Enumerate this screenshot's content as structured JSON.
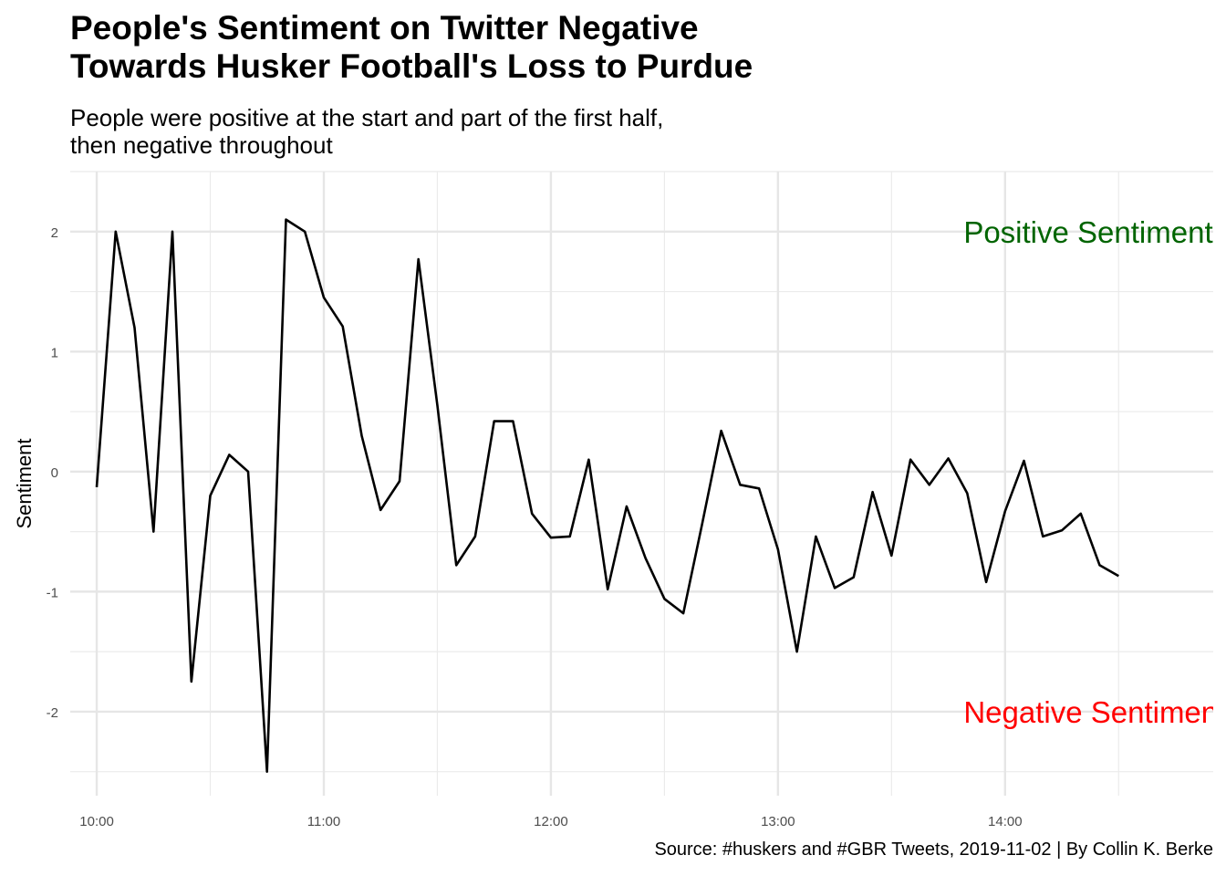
{
  "chart_data": {
    "type": "line",
    "title": [
      "People's Sentiment on Twitter Negative",
      "Towards Husker Football's Loss to Purdue"
    ],
    "subtitle": [
      "People were positive at the start and part of the first half,",
      "then negative throughout"
    ],
    "ylabel": "Sentiment",
    "xlabel": "",
    "caption": "Source: #huskers and #GBR Tweets, 2019-11-02 | By Collin K. Berke",
    "x_ticks": [
      "10:00",
      "11:00",
      "12:00",
      "13:00",
      "14:00"
    ],
    "y_ticks": [
      2,
      1,
      0,
      -1,
      -2
    ],
    "xlim": [
      "09:53",
      "14:55"
    ],
    "ylim": [
      -2.7,
      2.5
    ],
    "grid": true,
    "annotations": [
      {
        "text": "Positive Sentiment",
        "x": "13:50",
        "y": 2.0,
        "color": "#006400"
      },
      {
        "text": "Negative Sentiment",
        "x": "13:50",
        "y": -2.0,
        "color": "#ff0000"
      }
    ],
    "series": [
      {
        "color": "#000000",
        "x": [
          "10:00",
          "10:05",
          "10:10",
          "10:15",
          "10:20",
          "10:25",
          "10:30",
          "10:35",
          "10:40",
          "10:45",
          "10:50",
          "10:55",
          "11:00",
          "11:05",
          "11:10",
          "11:15",
          "11:20",
          "11:25",
          "11:30",
          "11:35",
          "11:40",
          "11:45",
          "11:50",
          "11:55",
          "12:00",
          "12:05",
          "12:10",
          "12:15",
          "12:20",
          "12:25",
          "12:30",
          "12:35",
          "12:40",
          "12:45",
          "12:50",
          "12:55",
          "13:00",
          "13:05",
          "13:10",
          "13:15",
          "13:20",
          "13:25",
          "13:30",
          "13:35",
          "13:40",
          "13:45",
          "13:50",
          "13:55",
          "14:00",
          "14:05",
          "14:10",
          "14:15",
          "14:20",
          "14:25",
          "14:30"
        ],
        "values": [
          -0.13,
          2.0,
          1.2,
          -0.5,
          2.0,
          -1.75,
          -0.2,
          0.14,
          0.0,
          -2.5,
          2.1,
          2.0,
          1.45,
          1.21,
          0.3,
          -0.32,
          -0.08,
          1.77,
          0.55,
          -0.78,
          -0.54,
          0.42,
          0.42,
          -0.35,
          -0.55,
          -0.54,
          0.1,
          -0.98,
          -0.29,
          -0.72,
          -1.06,
          -1.18,
          -0.43,
          0.34,
          -0.11,
          -0.14,
          -0.65,
          -1.5,
          -0.54,
          -0.97,
          -0.88,
          -0.17,
          -0.7,
          0.1,
          -0.11,
          0.11,
          -0.18,
          -0.92,
          -0.33,
          0.09,
          -0.54,
          -0.49,
          -0.35,
          -0.78,
          -0.87
        ]
      }
    ]
  }
}
